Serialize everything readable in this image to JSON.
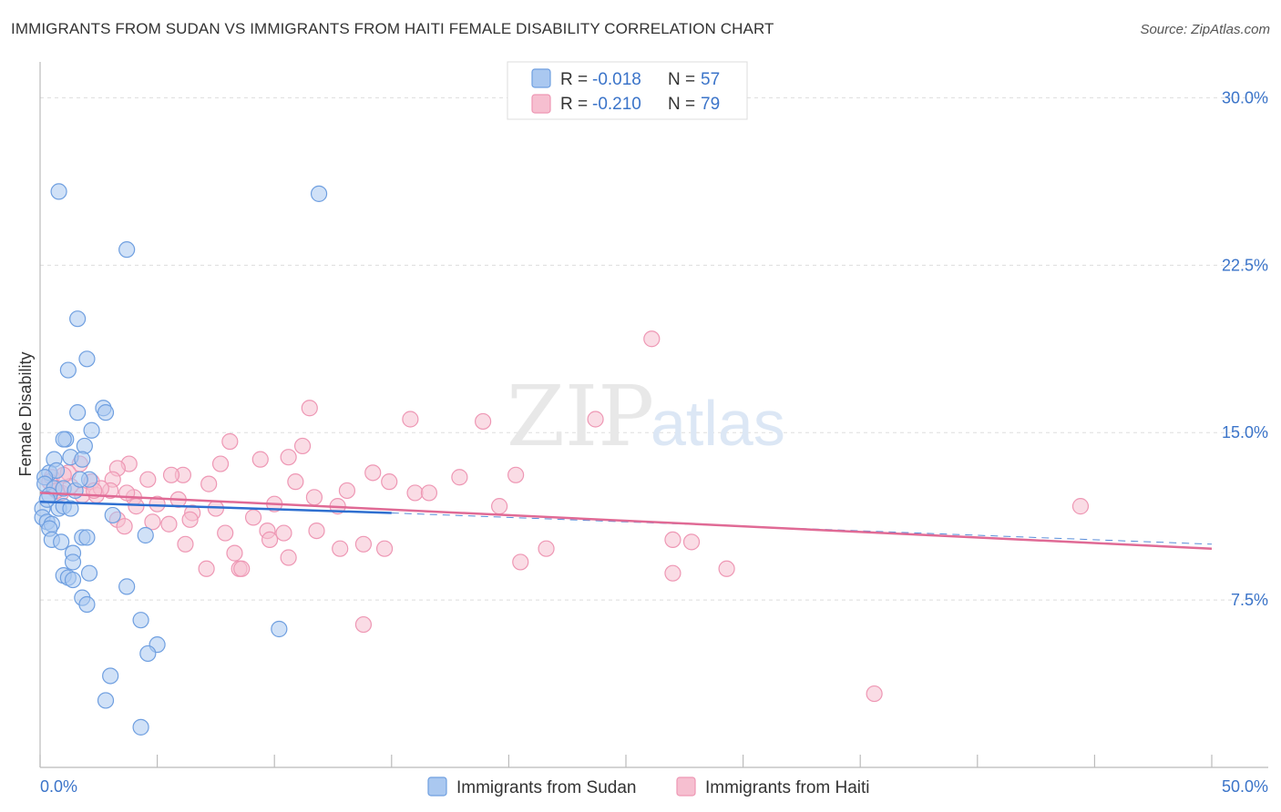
{
  "header": {
    "title": "IMMIGRANTS FROM SUDAN VS IMMIGRANTS FROM HAITI FEMALE DISABILITY CORRELATION CHART",
    "source": "Source: ZipAtlas.com"
  },
  "watermark": {
    "zip": "ZIP",
    "atlas": "atlas"
  },
  "colors": {
    "sudan_fill": "#aac8f0",
    "sudan_stroke": "#6f9fe0",
    "sudan_line": "#2e6fd0",
    "haiti_fill": "#f6bfd0",
    "haiti_stroke": "#ee97b4",
    "haiti_line": "#e06a95",
    "grid": "#dddddd",
    "tick_text": "#3b74c9"
  },
  "legend": {
    "sudan": {
      "r_label": "R =",
      "r_value": "-0.018",
      "n_label": "N =",
      "n_value": "57"
    },
    "haiti": {
      "r_label": "R =",
      "r_value": "-0.210",
      "n_label": "N =",
      "n_value": "79"
    }
  },
  "bottom_legend": {
    "sudan": "Immigrants from Sudan",
    "haiti": "Immigrants from Haiti"
  },
  "chart_data": {
    "type": "scatter",
    "title": "IMMIGRANTS FROM SUDAN VS IMMIGRANTS FROM HAITI FEMALE DISABILITY CORRELATION CHART",
    "xlabel": "",
    "ylabel": "Female Disability",
    "xlim": [
      0,
      50
    ],
    "ylim": [
      0,
      31.2
    ],
    "x_tick_labels": [
      {
        "value": 0,
        "label": "0.0%"
      },
      {
        "value": 50,
        "label": "50.0%"
      }
    ],
    "y_ticks": [
      {
        "value": 7.5,
        "label": "7.5%"
      },
      {
        "value": 15.0,
        "label": "15.0%"
      },
      {
        "value": 22.5,
        "label": "22.5%"
      },
      {
        "value": 30.0,
        "label": "30.0%"
      }
    ],
    "x_minor_ticks": [
      0,
      5,
      10,
      15,
      20,
      25,
      30,
      35,
      40,
      45,
      50
    ],
    "series": [
      {
        "name": "Immigrants from Sudan",
        "R": -0.018,
        "N": 57,
        "trend_solid": [
          [
            0,
            11.9
          ],
          [
            15,
            11.4
          ]
        ],
        "trend_dashed": [
          [
            15,
            11.4
          ],
          [
            50,
            10.0
          ]
        ],
        "points": [
          [
            0.8,
            25.8
          ],
          [
            11.9,
            25.7
          ],
          [
            3.7,
            23.2
          ],
          [
            1.6,
            20.1
          ],
          [
            2.0,
            18.3
          ],
          [
            1.2,
            17.8
          ],
          [
            1.6,
            15.9
          ],
          [
            2.7,
            16.1
          ],
          [
            2.8,
            15.9
          ],
          [
            2.2,
            15.1
          ],
          [
            1.1,
            14.7
          ],
          [
            1.9,
            14.4
          ],
          [
            1.0,
            14.7
          ],
          [
            1.3,
            13.9
          ],
          [
            1.8,
            13.8
          ],
          [
            0.6,
            13.8
          ],
          [
            0.4,
            13.2
          ],
          [
            0.7,
            13.3
          ],
          [
            0.2,
            13.0
          ],
          [
            0.2,
            12.7
          ],
          [
            0.6,
            12.5
          ],
          [
            1.0,
            12.5
          ],
          [
            1.5,
            12.4
          ],
          [
            2.1,
            12.9
          ],
          [
            1.7,
            12.9
          ],
          [
            0.4,
            12.2
          ],
          [
            0.1,
            11.6
          ],
          [
            0.8,
            11.6
          ],
          [
            1.0,
            11.7
          ],
          [
            1.3,
            11.6
          ],
          [
            0.1,
            11.2
          ],
          [
            0.3,
            11.0
          ],
          [
            0.5,
            10.9
          ],
          [
            0.4,
            10.7
          ],
          [
            3.1,
            11.3
          ],
          [
            0.5,
            10.2
          ],
          [
            0.9,
            10.1
          ],
          [
            1.8,
            10.3
          ],
          [
            2.0,
            10.3
          ],
          [
            4.5,
            10.4
          ],
          [
            1.4,
            9.6
          ],
          [
            1.4,
            9.2
          ],
          [
            1.0,
            8.6
          ],
          [
            1.2,
            8.5
          ],
          [
            1.4,
            8.4
          ],
          [
            2.1,
            8.7
          ],
          [
            3.7,
            8.1
          ],
          [
            1.8,
            7.6
          ],
          [
            2.0,
            7.3
          ],
          [
            4.3,
            6.6
          ],
          [
            10.2,
            6.2
          ],
          [
            5.0,
            5.5
          ],
          [
            4.6,
            5.1
          ],
          [
            3.0,
            4.1
          ],
          [
            2.8,
            3.0
          ],
          [
            4.3,
            1.8
          ],
          [
            0.3,
            12.0
          ]
        ]
      },
      {
        "name": "Immigrants from Haiti",
        "R": -0.21,
        "N": 79,
        "trend_solid": [
          [
            0,
            12.3
          ],
          [
            50,
            9.8
          ]
        ],
        "points": [
          [
            26.1,
            19.2
          ],
          [
            11.5,
            16.1
          ],
          [
            15.8,
            15.6
          ],
          [
            18.9,
            15.5
          ],
          [
            23.7,
            15.6
          ],
          [
            8.1,
            14.6
          ],
          [
            11.2,
            14.4
          ],
          [
            10.6,
            13.9
          ],
          [
            9.4,
            13.8
          ],
          [
            7.7,
            13.6
          ],
          [
            3.8,
            13.6
          ],
          [
            3.3,
            13.4
          ],
          [
            1.7,
            13.6
          ],
          [
            0.5,
            13.0
          ],
          [
            1.2,
            13.2
          ],
          [
            14.2,
            13.2
          ],
          [
            17.9,
            13.0
          ],
          [
            20.3,
            13.1
          ],
          [
            6.1,
            13.1
          ],
          [
            5.6,
            13.1
          ],
          [
            4.6,
            12.9
          ],
          [
            2.2,
            12.8
          ],
          [
            3.1,
            12.9
          ],
          [
            7.2,
            12.7
          ],
          [
            10.9,
            12.8
          ],
          [
            14.9,
            12.8
          ],
          [
            13.1,
            12.4
          ],
          [
            16.0,
            12.3
          ],
          [
            16.6,
            12.3
          ],
          [
            0.9,
            12.3
          ],
          [
            1.8,
            12.2
          ],
          [
            2.4,
            12.2
          ],
          [
            3.0,
            12.4
          ],
          [
            4.0,
            12.1
          ],
          [
            11.7,
            12.1
          ],
          [
            5.0,
            11.8
          ],
          [
            4.1,
            11.7
          ],
          [
            7.5,
            11.6
          ],
          [
            10.0,
            11.8
          ],
          [
            12.7,
            11.7
          ],
          [
            19.6,
            11.7
          ],
          [
            44.4,
            11.7
          ],
          [
            6.5,
            11.4
          ],
          [
            9.1,
            11.2
          ],
          [
            6.4,
            11.1
          ],
          [
            3.3,
            11.1
          ],
          [
            4.8,
            11.0
          ],
          [
            5.5,
            10.9
          ],
          [
            3.6,
            10.8
          ],
          [
            6.2,
            10.0
          ],
          [
            7.9,
            10.5
          ],
          [
            9.7,
            10.6
          ],
          [
            10.4,
            10.5
          ],
          [
            11.8,
            10.6
          ],
          [
            9.8,
            10.2
          ],
          [
            13.8,
            10.0
          ],
          [
            14.7,
            9.8
          ],
          [
            12.8,
            9.8
          ],
          [
            27.0,
            10.2
          ],
          [
            27.8,
            10.1
          ],
          [
            21.6,
            9.8
          ],
          [
            8.3,
            9.6
          ],
          [
            10.6,
            9.4
          ],
          [
            20.5,
            9.2
          ],
          [
            7.1,
            8.9
          ],
          [
            8.5,
            8.9
          ],
          [
            8.6,
            8.9
          ],
          [
            29.3,
            8.9
          ],
          [
            27.0,
            8.7
          ],
          [
            13.8,
            6.4
          ],
          [
            35.6,
            3.3
          ],
          [
            1.3,
            12.6
          ],
          [
            0.4,
            12.8
          ],
          [
            2.6,
            12.5
          ],
          [
            5.9,
            12.0
          ],
          [
            3.7,
            12.3
          ],
          [
            1.0,
            13.1
          ],
          [
            2.3,
            12.4
          ],
          [
            0.7,
            12.4
          ]
        ]
      }
    ]
  }
}
